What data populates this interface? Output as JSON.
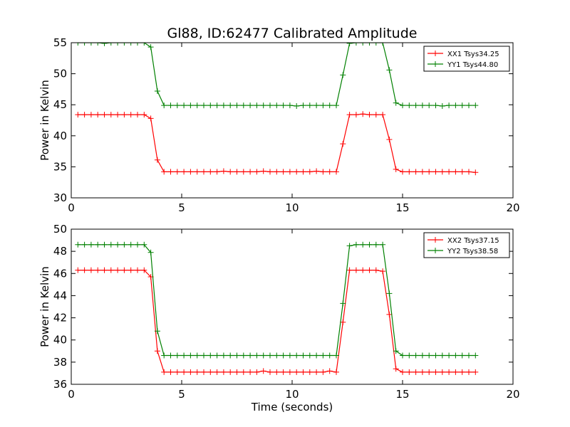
{
  "figure": {
    "title": "Gl88, ID:62477 Calibrated Amplitude",
    "xlabel": "Time (seconds)"
  },
  "chart_data": [
    {
      "type": "line",
      "title": "Gl88, ID:62477 Calibrated Amplitude",
      "xlabel": "",
      "ylabel": "Power in Kelvin",
      "xlim": [
        0,
        20
      ],
      "ylim": [
        30,
        55
      ],
      "xticks": [
        0,
        5,
        10,
        15,
        20
      ],
      "yticks": [
        30,
        35,
        40,
        45,
        50,
        55
      ],
      "grid": false,
      "legend_position": "top-right",
      "x": [
        0.3,
        0.6,
        0.9,
        1.2,
        1.5,
        1.8,
        2.1,
        2.4,
        2.7,
        3.0,
        3.3,
        3.6,
        3.9,
        4.2,
        4.5,
        4.8,
        5.1,
        5.4,
        5.7,
        6.0,
        6.3,
        6.6,
        6.9,
        7.2,
        7.5,
        7.8,
        8.1,
        8.4,
        8.7,
        9.0,
        9.3,
        9.6,
        9.9,
        10.2,
        10.5,
        10.8,
        11.1,
        11.4,
        11.7,
        12.0,
        12.3,
        12.6,
        12.9,
        13.2,
        13.5,
        13.8,
        14.1,
        14.4,
        14.7,
        15.0,
        15.3,
        15.6,
        15.9,
        16.2,
        16.5,
        16.8,
        17.1,
        17.4,
        17.7,
        18.0,
        18.3
      ],
      "series": [
        {
          "name": "XX1 Tsys34.25",
          "color": "#ff0000",
          "values": [
            43.4,
            43.4,
            43.4,
            43.4,
            43.4,
            43.4,
            43.4,
            43.4,
            43.4,
            43.4,
            43.4,
            42.8,
            36.1,
            34.2,
            34.2,
            34.2,
            34.2,
            34.2,
            34.2,
            34.2,
            34.2,
            34.2,
            34.3,
            34.2,
            34.2,
            34.2,
            34.2,
            34.2,
            34.3,
            34.2,
            34.2,
            34.2,
            34.2,
            34.2,
            34.2,
            34.2,
            34.3,
            34.2,
            34.2,
            34.2,
            38.7,
            43.4,
            43.4,
            43.5,
            43.4,
            43.4,
            43.4,
            39.4,
            34.6,
            34.2,
            34.2,
            34.2,
            34.2,
            34.2,
            34.2,
            34.2,
            34.2,
            34.2,
            34.2,
            34.2,
            34.1
          ]
        },
        {
          "name": "YY1 Tsys44.80",
          "color": "#008000",
          "values": [
            55.0,
            55.0,
            55.0,
            55.0,
            54.9,
            55.0,
            55.0,
            55.0,
            55.0,
            55.0,
            55.0,
            54.3,
            47.2,
            44.9,
            44.9,
            44.9,
            44.9,
            44.9,
            44.9,
            44.9,
            44.9,
            44.9,
            44.9,
            44.9,
            44.9,
            44.9,
            44.9,
            44.9,
            44.9,
            44.9,
            44.9,
            44.9,
            44.9,
            44.8,
            44.9,
            44.9,
            44.9,
            44.9,
            44.9,
            44.9,
            49.8,
            54.9,
            55.0,
            55.0,
            55.0,
            55.0,
            55.0,
            50.6,
            45.3,
            44.9,
            44.9,
            44.9,
            44.9,
            44.9,
            44.9,
            44.8,
            44.9,
            44.9,
            44.9,
            44.9,
            44.9
          ]
        }
      ]
    },
    {
      "type": "line",
      "title": "",
      "xlabel": "Time (seconds)",
      "ylabel": "Power in Kelvin",
      "xlim": [
        0,
        20
      ],
      "ylim": [
        36,
        50
      ],
      "xticks": [
        0,
        5,
        10,
        15,
        20
      ],
      "yticks": [
        36,
        38,
        40,
        42,
        44,
        46,
        48,
        50
      ],
      "grid": false,
      "legend_position": "top-right",
      "x": [
        0.3,
        0.6,
        0.9,
        1.2,
        1.5,
        1.8,
        2.1,
        2.4,
        2.7,
        3.0,
        3.3,
        3.6,
        3.9,
        4.2,
        4.5,
        4.8,
        5.1,
        5.4,
        5.7,
        6.0,
        6.3,
        6.6,
        6.9,
        7.2,
        7.5,
        7.8,
        8.1,
        8.4,
        8.7,
        9.0,
        9.3,
        9.6,
        9.9,
        10.2,
        10.5,
        10.8,
        11.1,
        11.4,
        11.7,
        12.0,
        12.3,
        12.6,
        12.9,
        13.2,
        13.5,
        13.8,
        14.1,
        14.4,
        14.7,
        15.0,
        15.3,
        15.6,
        15.9,
        16.2,
        16.5,
        16.8,
        17.1,
        17.4,
        17.7,
        18.0,
        18.3
      ],
      "series": [
        {
          "name": "XX2 Tsys37.15",
          "color": "#ff0000",
          "values": [
            46.3,
            46.3,
            46.3,
            46.3,
            46.3,
            46.3,
            46.3,
            46.3,
            46.3,
            46.3,
            46.3,
            45.7,
            39.0,
            37.1,
            37.1,
            37.1,
            37.1,
            37.1,
            37.1,
            37.1,
            37.1,
            37.1,
            37.1,
            37.1,
            37.1,
            37.1,
            37.1,
            37.1,
            37.2,
            37.1,
            37.1,
            37.1,
            37.1,
            37.1,
            37.1,
            37.1,
            37.1,
            37.1,
            37.2,
            37.1,
            41.6,
            46.3,
            46.3,
            46.3,
            46.3,
            46.3,
            46.2,
            42.3,
            37.4,
            37.1,
            37.1,
            37.1,
            37.1,
            37.1,
            37.1,
            37.1,
            37.1,
            37.1,
            37.1,
            37.1,
            37.1
          ]
        },
        {
          "name": "YY2 Tsys38.58",
          "color": "#008000",
          "values": [
            48.6,
            48.6,
            48.6,
            48.6,
            48.6,
            48.6,
            48.6,
            48.6,
            48.6,
            48.6,
            48.6,
            47.9,
            40.8,
            38.6,
            38.6,
            38.6,
            38.6,
            38.6,
            38.6,
            38.6,
            38.6,
            38.6,
            38.6,
            38.6,
            38.6,
            38.6,
            38.6,
            38.6,
            38.6,
            38.6,
            38.6,
            38.6,
            38.6,
            38.6,
            38.6,
            38.6,
            38.6,
            38.6,
            38.6,
            38.6,
            43.3,
            48.5,
            48.6,
            48.6,
            48.6,
            48.6,
            48.6,
            44.2,
            39.0,
            38.6,
            38.6,
            38.6,
            38.6,
            38.6,
            38.6,
            38.6,
            38.6,
            38.6,
            38.6,
            38.6,
            38.6
          ]
        }
      ]
    }
  ]
}
